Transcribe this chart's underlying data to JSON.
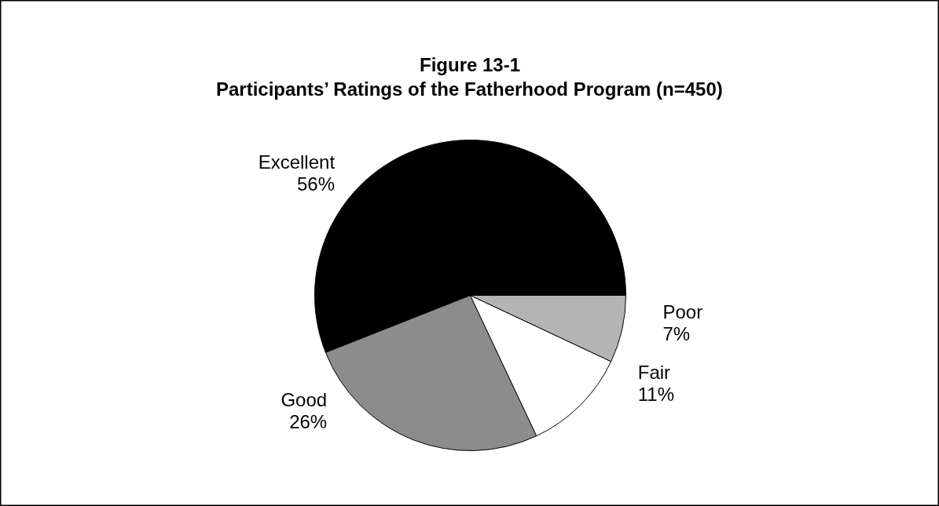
{
  "chart_data": {
    "type": "pie",
    "title": "Figure 13-1\nParticipants’ Ratings of the Fatherhood Program (n=450)",
    "categories": [
      "Excellent",
      "Good",
      "Fair",
      "Poor"
    ],
    "values": [
      56,
      26,
      11,
      7
    ],
    "colors": [
      "#000000",
      "#8c8c8c",
      "#ffffff",
      "#b4b4b4"
    ],
    "value_labels": [
      "56%",
      "26%",
      "11%",
      "7%"
    ],
    "legend": false
  }
}
